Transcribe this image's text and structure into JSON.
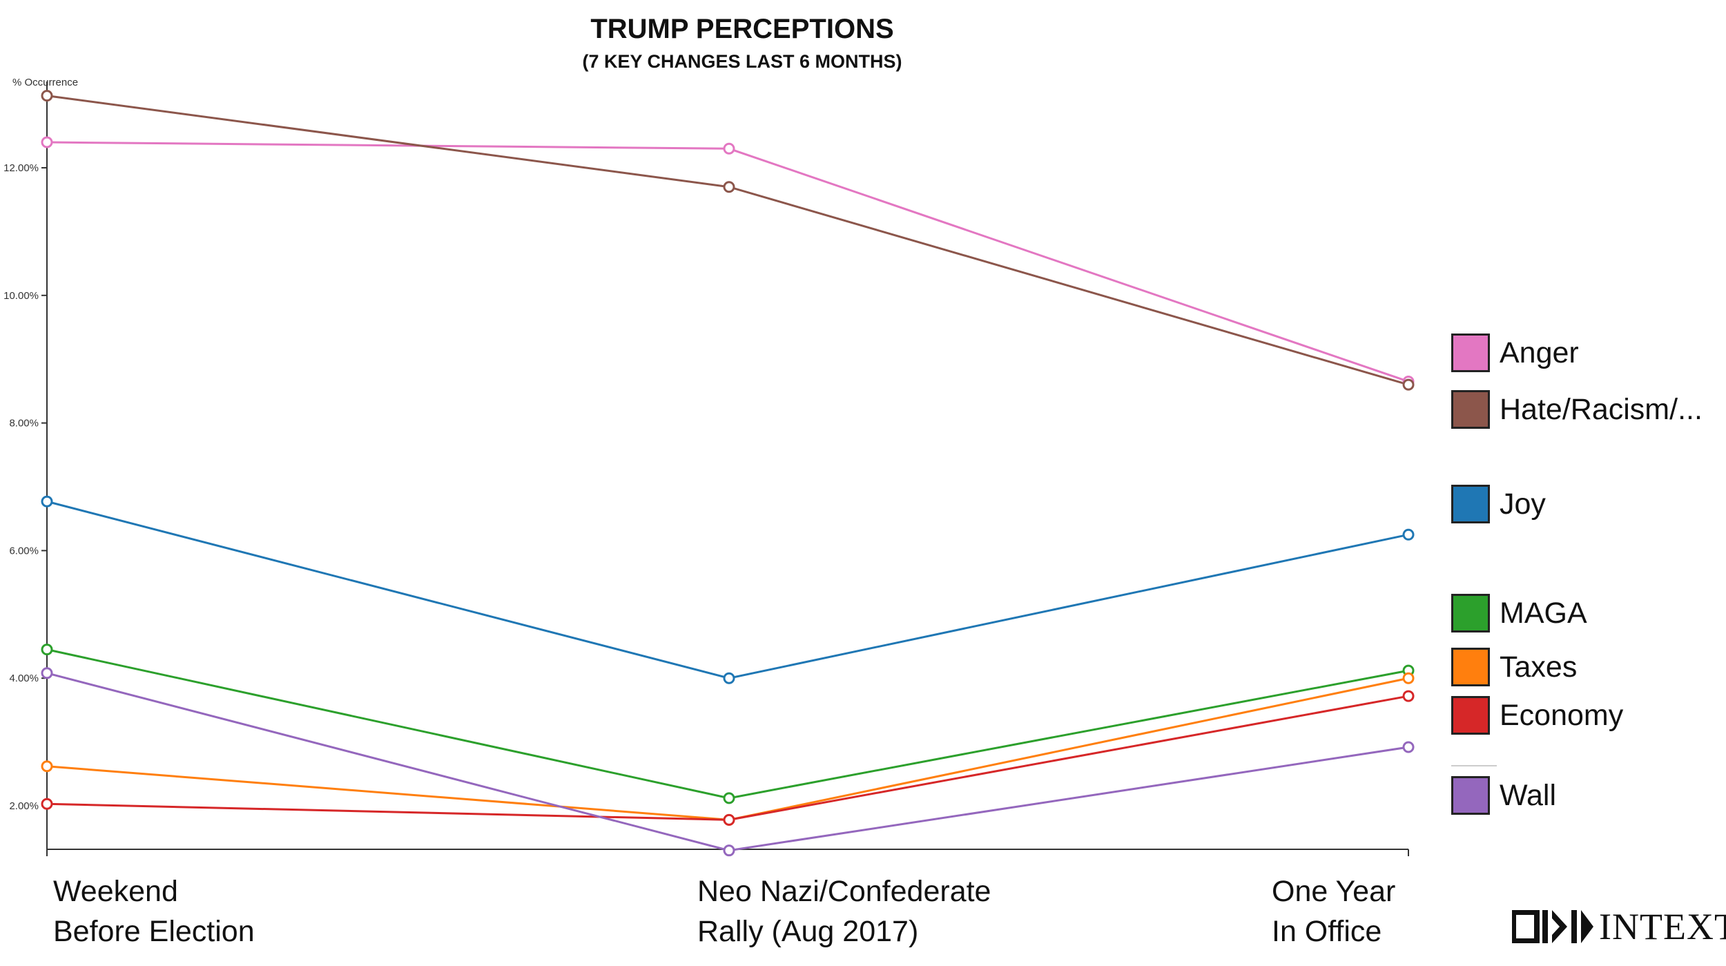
{
  "chart_data": {
    "type": "line",
    "title": "TRUMP PERCEPTIONS",
    "subtitle": "(7 KEY CHANGES LAST 6 MONTHS)",
    "ylabel": "% Occurrence",
    "ylim": [
      1.3,
      13.5
    ],
    "yticks": [
      "2.00%",
      "4.00%",
      "6.00%",
      "8.00%",
      "10.00%",
      "12.00%"
    ],
    "ytick_values": [
      2,
      4,
      6,
      8,
      10,
      12
    ],
    "categories": [
      {
        "line1": "Weekend",
        "line2": "Before Election"
      },
      {
        "line1": "Neo Nazi/Confederate",
        "line2": "Rally (Aug 2017)"
      },
      {
        "line1": "One Year",
        "line2": "In Office"
      }
    ],
    "series": [
      {
        "name": "Anger",
        "color": "#e377c2",
        "values": [
          12.4,
          12.3,
          8.65
        ]
      },
      {
        "name": "Hate/Racism/...",
        "color": "#8c564b",
        "values": [
          13.13,
          11.7,
          8.6
        ]
      },
      {
        "name": "Joy",
        "color": "#1f77b4",
        "values": [
          6.77,
          4.0,
          6.25
        ]
      },
      {
        "name": "MAGA",
        "color": "#2ca02c",
        "values": [
          4.45,
          2.12,
          4.12
        ]
      },
      {
        "name": "Taxes",
        "color": "#ff7f0e",
        "values": [
          2.62,
          1.78,
          4.0
        ]
      },
      {
        "name": "Economy",
        "color": "#d62728",
        "values": [
          2.03,
          1.78,
          3.72
        ]
      },
      {
        "name": "Wall",
        "color": "#9467bd",
        "values": [
          4.08,
          1.3,
          2.92
        ]
      }
    ],
    "legend_position": "right",
    "grid": false
  },
  "logo": {
    "text": "INTEXT"
  }
}
